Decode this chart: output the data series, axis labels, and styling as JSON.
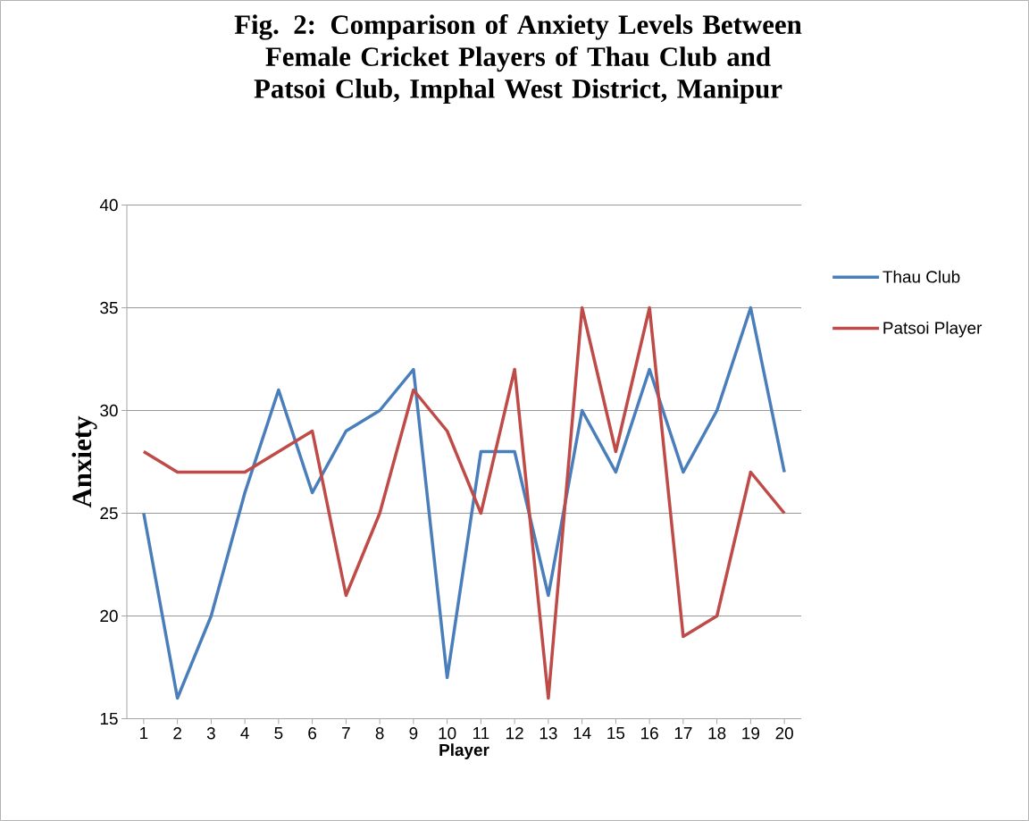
{
  "chart_data": {
    "type": "line",
    "title": "Fig. 2: Comparison of Anxiety Levels Between Female Cricket Players of Thau Club and Patsoi Club, Imphal West District, Manipur",
    "xlabel": "Player",
    "ylabel": "Anxiety",
    "categories": [
      "1",
      "2",
      "3",
      "4",
      "5",
      "6",
      "7",
      "8",
      "9",
      "10",
      "11",
      "12",
      "13",
      "14",
      "15",
      "16",
      "17",
      "18",
      "19",
      "20"
    ],
    "series": [
      {
        "name": "Thau Club",
        "color": "#4a7ebb",
        "values": [
          25,
          16,
          20,
          26,
          31,
          26,
          29,
          30,
          32,
          17,
          28,
          28,
          21,
          30,
          27,
          32,
          27,
          30,
          35,
          27
        ]
      },
      {
        "name": "Patsoi Player",
        "color": "#be4b48",
        "values": [
          28,
          27,
          27,
          27,
          28,
          29,
          21,
          25,
          31,
          29,
          25,
          32,
          16,
          35,
          28,
          35,
          19,
          20,
          27,
          25
        ]
      }
    ],
    "ylim": [
      15,
      40
    ],
    "yticks": [
      15,
      20,
      25,
      30,
      35,
      40
    ],
    "grid": "y",
    "legend": "right"
  }
}
